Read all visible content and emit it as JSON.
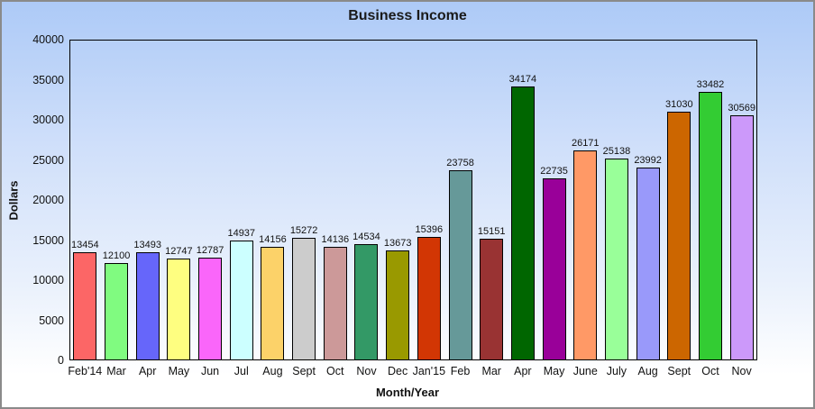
{
  "figure": {
    "border_color": "#8a8a8a",
    "background_top": "#adcaf7",
    "background_bottom": "#ffffff",
    "plot_border_color": "#000000"
  },
  "chart_data": {
    "type": "bar",
    "title": "Business Income",
    "xlabel": "Month/Year",
    "ylabel": "Dollars",
    "ylim": [
      0,
      40000
    ],
    "ytick_step": 5000,
    "ytick_labels": [
      "0",
      "5000",
      "10000",
      "15000",
      "20000",
      "25000",
      "30000",
      "35000",
      "40000"
    ],
    "grid": false,
    "legend": null,
    "categories": [
      "Feb'14",
      "Mar",
      "Apr",
      "May",
      "Jun",
      "Jul",
      "Aug",
      "Sept",
      "Oct",
      "Nov",
      "Dec",
      "Jan'15",
      "Feb",
      "Mar",
      "Apr",
      "May",
      "June",
      "July",
      "Aug",
      "Sept",
      "Oct",
      "Nov"
    ],
    "values": [
      13454,
      12100,
      13493,
      12747,
      12787,
      14937,
      14156,
      15272,
      14136,
      14534,
      13673,
      15396,
      23758,
      15151,
      34174,
      22735,
      26171,
      25138,
      23992,
      31030,
      33482,
      30569
    ],
    "bar_colors": [
      "#fc6666",
      "#80fb80",
      "#6666fa",
      "#fefe80",
      "#fa66fa",
      "#ccffff",
      "#fcd269",
      "#cccccc",
      "#cc9999",
      "#339966",
      "#999900",
      "#d23604",
      "#669999",
      "#993333",
      "#006600",
      "#990099",
      "#ff9966",
      "#99ff99",
      "#9999fa",
      "#cc6600",
      "#33cc33",
      "#cc99fa"
    ],
    "bar_border_color": "#000000"
  }
}
